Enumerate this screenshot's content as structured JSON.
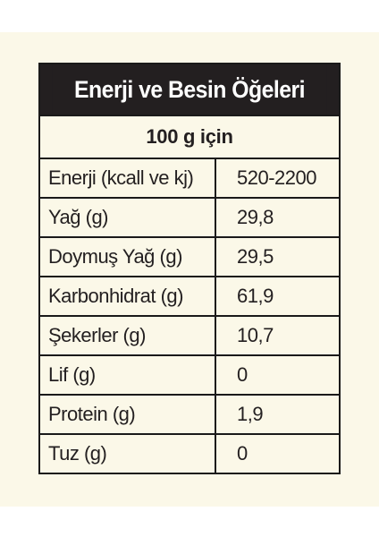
{
  "table": {
    "title": "Enerji ve Besin Öğeleri",
    "subtitle": "100 g için",
    "rows": [
      {
        "name": "Enerji (kcall ve kj)",
        "value": "520-2200"
      },
      {
        "name": "Yağ (g)",
        "value": "29,8"
      },
      {
        "name": "Doymuş Yağ (g)",
        "value": "29,5"
      },
      {
        "name": "Karbonhidrat (g)",
        "value": "61,9"
      },
      {
        "name": "Şekerler (g)",
        "value": "10,7"
      },
      {
        "name": "Lif (g)",
        "value": "0"
      },
      {
        "name": "Protein (g)",
        "value": "1,9"
      },
      {
        "name": "Tuz (g)",
        "value": "0"
      }
    ]
  },
  "colors": {
    "background": "#fbf8e8",
    "header": "#231f20",
    "text": "#231f20"
  }
}
